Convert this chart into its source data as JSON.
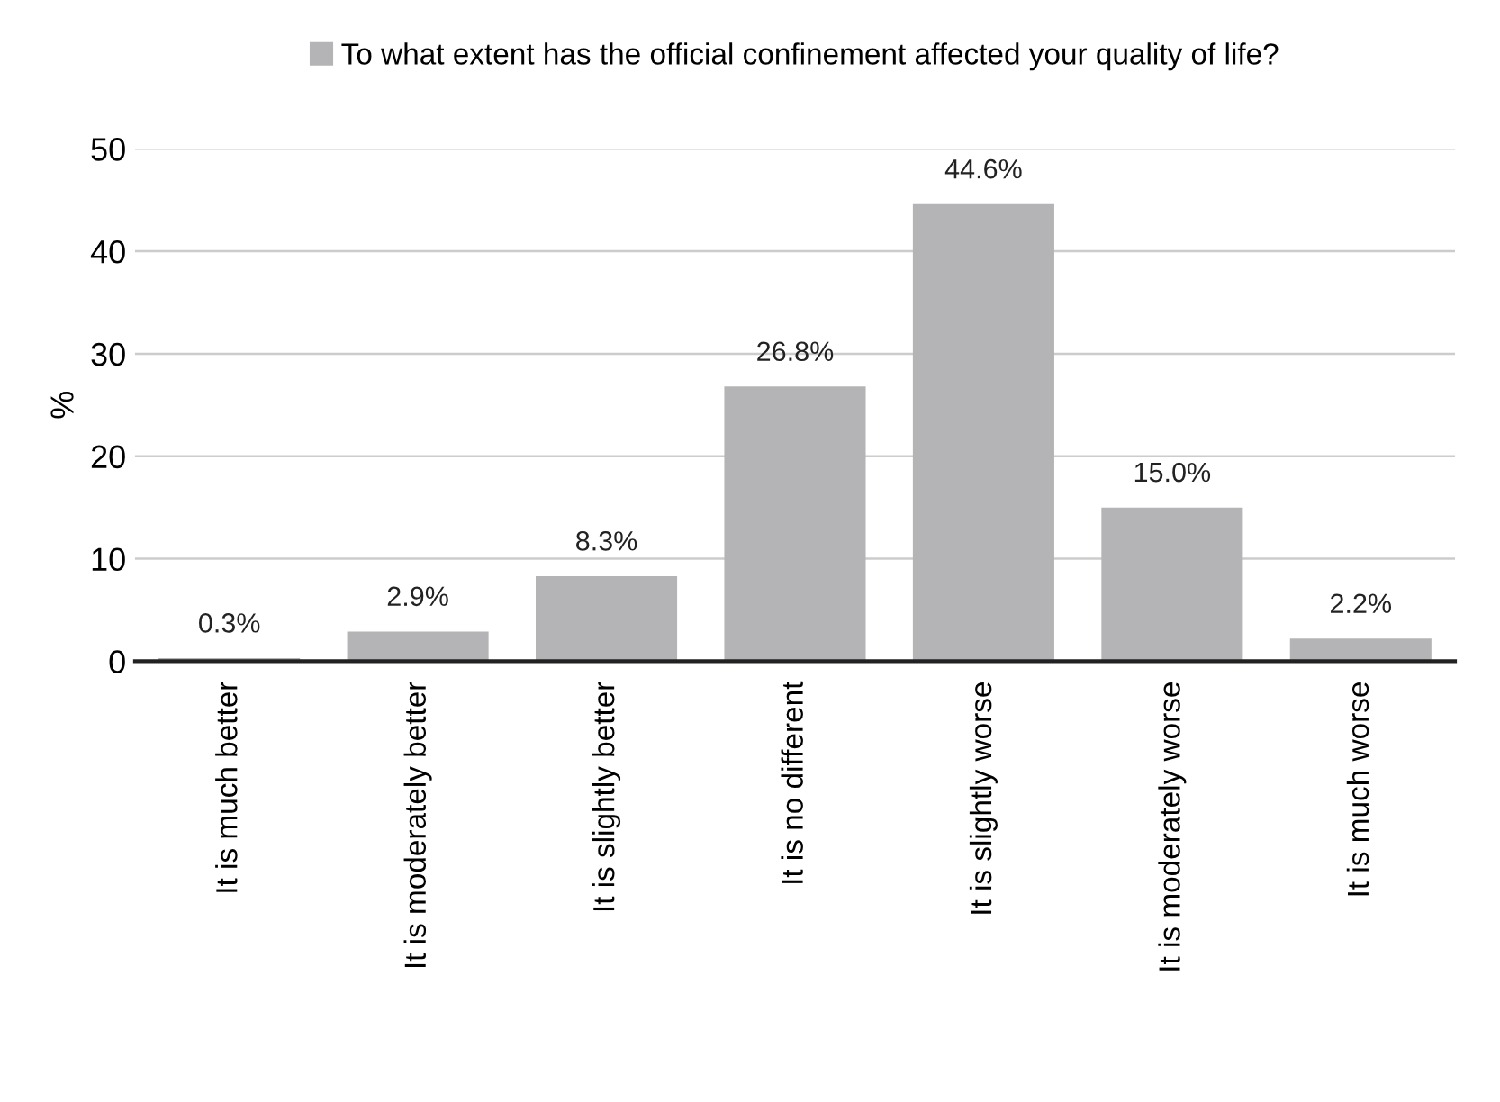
{
  "chart_data": {
    "type": "bar",
    "ylabel": "%",
    "categories": [
      "It is much better",
      "It is moderately better",
      "It is slightly better",
      "It is no different",
      "It is slightly worse",
      "It is moderately worse",
      "It is much worse"
    ],
    "series": [
      {
        "name": "To what extent has the official confinement affected your quality of life?",
        "color": "#b4b4b6",
        "values": [
          0.3,
          2.9,
          8.3,
          26.8,
          44.6,
          15.0,
          2.2
        ],
        "value_labels": [
          "0.3%",
          "2.9%",
          "8.3%",
          "26.8%",
          "44.6%",
          "15.0%",
          "2.2%"
        ]
      }
    ],
    "ylim": [
      0,
      50
    ],
    "yticks": [
      0,
      10,
      20,
      30,
      40,
      50
    ],
    "grid": "y",
    "legend": "top"
  }
}
